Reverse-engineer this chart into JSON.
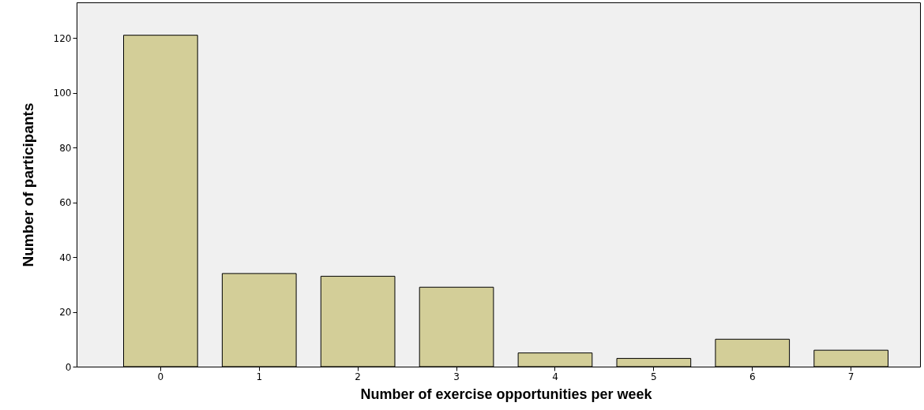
{
  "chart_data": {
    "type": "bar",
    "xlabel": "Number of exercise opportunities per week",
    "ylabel": "Number of participants",
    "categories": [
      "0",
      "1",
      "2",
      "3",
      "4",
      "5",
      "6",
      "7"
    ],
    "values": [
      121,
      34,
      33,
      29,
      5,
      3,
      10,
      6
    ],
    "color": "#d3ce98",
    "ylim": [
      0,
      133
    ],
    "yticks": [
      0,
      20,
      40,
      60,
      80,
      100,
      120
    ],
    "grid": false
  }
}
